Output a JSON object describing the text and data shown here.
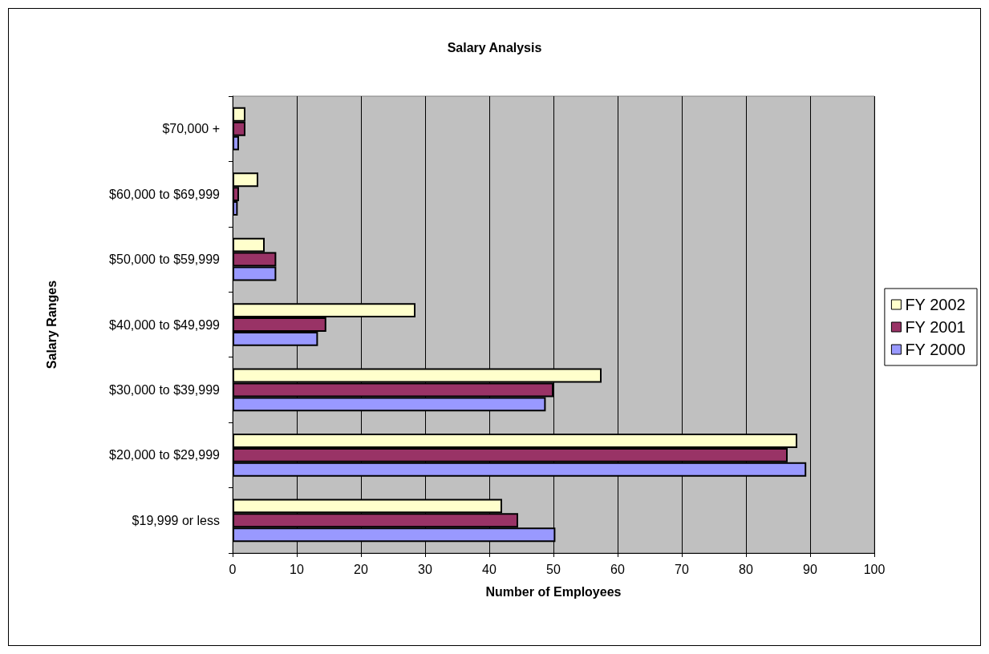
{
  "chart_data": {
    "type": "bar",
    "orientation": "horizontal",
    "title": "Salary Analysis",
    "xlabel": "Number of Employees",
    "ylabel": "Salary Ranges",
    "categories": [
      "$70,000 +",
      "$60,000 to $69,999",
      "$50,000 to $59,999",
      "$40,000 to $49,999",
      "$30,000 to $39,999",
      "$20,000 to $29,999",
      "$19,999 or less"
    ],
    "series": [
      {
        "name": "FY 2002",
        "color": "#ffffcc",
        "values": [
          2,
          4,
          5,
          28.5,
          57.5,
          88,
          42
        ]
      },
      {
        "name": "FY 2001",
        "color": "#993366",
        "values": [
          2,
          1,
          6.8,
          14.6,
          50,
          86.5,
          44.5
        ]
      },
      {
        "name": "FY 2000",
        "color": "#9999ff",
        "values": [
          1,
          0.8,
          6.8,
          13.3,
          48.8,
          89.4,
          50.3
        ]
      }
    ],
    "xlim": [
      0,
      100
    ],
    "xticks": [
      0,
      10,
      20,
      30,
      40,
      50,
      60,
      70,
      80,
      90,
      100
    ],
    "grid": "x",
    "legend": "right"
  }
}
